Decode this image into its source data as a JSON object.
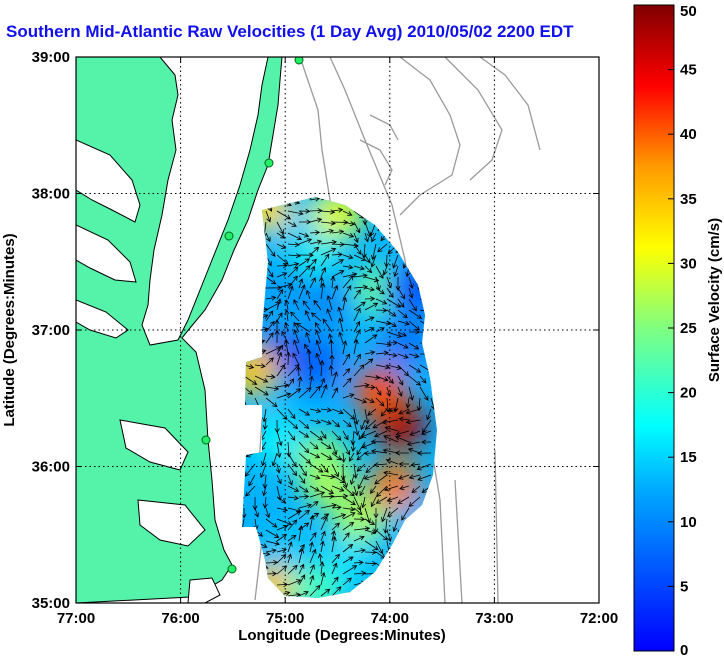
{
  "chart_data": {
    "type": "heatmap",
    "title": "Southern Mid-Atlantic Raw Velocities (1 Day Avg) 2010/05/02 2200 EDT",
    "xlabel": "Longitude (Degrees:Minutes)",
    "ylabel": "Latitude (Degrees:Minutes)",
    "colorbar_label": "Surface Velocity (cm/s)",
    "xlim": [
      -77,
      -72
    ],
    "ylim": [
      35,
      39
    ],
    "x_ticks": [
      {
        "value": -77,
        "label": "77:00"
      },
      {
        "value": -76,
        "label": "76:00"
      },
      {
        "value": -75,
        "label": "75:00"
      },
      {
        "value": -74,
        "label": "74:00"
      },
      {
        "value": -73,
        "label": "73:00"
      },
      {
        "value": -72,
        "label": "72:00"
      }
    ],
    "y_ticks": [
      {
        "value": 39,
        "label": "39:00"
      },
      {
        "value": 38,
        "label": "38:00"
      },
      {
        "value": 37,
        "label": "37:00"
      },
      {
        "value": 36,
        "label": "36:00"
      },
      {
        "value": 35,
        "label": "35:00"
      }
    ],
    "colorbar_range": [
      0,
      50
    ],
    "colorbar_ticks": [
      0,
      5,
      10,
      15,
      20,
      25,
      30,
      35,
      40,
      45,
      50
    ],
    "colormap": "jet",
    "grid": true,
    "colors": {
      "land": "#55f2aa",
      "title": "#1010ee",
      "grid": "#000000",
      "bathymetry": "#9a9a9a"
    },
    "speed_hotspots": [
      {
        "lon": -73.9,
        "lat": 36.3,
        "speed": 48
      },
      {
        "lon": -74.1,
        "lat": 36.55,
        "speed": 40
      },
      {
        "lon": -73.95,
        "lat": 35.85,
        "speed": 38
      },
      {
        "lon": -74.6,
        "lat": 35.9,
        "speed": 28
      },
      {
        "lon": -74.1,
        "lat": 37.3,
        "speed": 24
      },
      {
        "lon": -74.65,
        "lat": 36.05,
        "speed": 26
      },
      {
        "lon": -74.3,
        "lat": 35.6,
        "speed": 27
      },
      {
        "lon": -74.75,
        "lat": 37.6,
        "speed": 20
      },
      {
        "lon": -75.1,
        "lat": 36.8,
        "speed": 5
      },
      {
        "lon": -74.7,
        "lat": 36.75,
        "speed": 11
      },
      {
        "lon": -75.0,
        "lat": 37.3,
        "speed": 14
      },
      {
        "lon": -74.6,
        "lat": 37.2,
        "speed": 13
      },
      {
        "lon": -74.85,
        "lat": 37.75,
        "speed": 16
      },
      {
        "lon": -75.1,
        "lat": 36.2,
        "speed": 18
      },
      {
        "lon": -74.95,
        "lat": 35.4,
        "speed": 16
      },
      {
        "lon": -74.4,
        "lat": 35.3,
        "speed": 17
      },
      {
        "lon": -75.15,
        "lat": 35.1,
        "speed": 34
      },
      {
        "lon": -74.7,
        "lat": 35.1,
        "speed": 22
      },
      {
        "lon": -75.2,
        "lat": 37.9,
        "speed": 33
      },
      {
        "lon": -74.5,
        "lat": 37.85,
        "speed": 30
      },
      {
        "lon": -75.3,
        "lat": 36.7,
        "speed": 34
      },
      {
        "lon": -73.75,
        "lat": 35.55,
        "speed": 15
      },
      {
        "lon": -73.85,
        "lat": 36.9,
        "speed": 12
      },
      {
        "lon": -73.8,
        "lat": 37.3,
        "speed": 10
      }
    ]
  }
}
